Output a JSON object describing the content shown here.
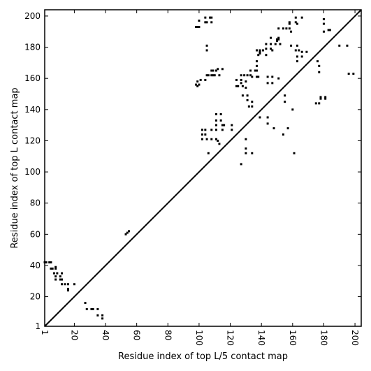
{
  "chart_data": {
    "type": "scatter",
    "title": "",
    "xlabel": "Residue index of top L/5 contact map",
    "ylabel": "Residue index of top L contact map",
    "xlim": [
      1,
      204
    ],
    "ylim": [
      1,
      204
    ],
    "xticks": [
      "1",
      "20",
      "40",
      "60",
      "80",
      "100",
      "120",
      "140",
      "160",
      "180",
      "200"
    ],
    "yticks": [
      "1",
      "20",
      "40",
      "60",
      "80",
      "100",
      "120",
      "140",
      "160",
      "180",
      "200"
    ],
    "diagonal": true,
    "grid": false,
    "marker_color": "#000000",
    "series": [
      {
        "points": [
          [
            1,
            42
          ],
          [
            2,
            42
          ],
          [
            4,
            42
          ],
          [
            5,
            42
          ],
          [
            5,
            38
          ],
          [
            6,
            38
          ],
          [
            8,
            39
          ],
          [
            8,
            38
          ],
          [
            7,
            35
          ],
          [
            9,
            35
          ],
          [
            8,
            33
          ],
          [
            8,
            31
          ],
          [
            11,
            33
          ],
          [
            11,
            31
          ],
          [
            12,
            31
          ],
          [
            12,
            35
          ],
          [
            12,
            28
          ],
          [
            14,
            28
          ],
          [
            16,
            28
          ],
          [
            16,
            25
          ],
          [
            16,
            24
          ],
          [
            20,
            28
          ],
          [
            27,
            16
          ],
          [
            28,
            12
          ],
          [
            31,
            12
          ],
          [
            32,
            12
          ],
          [
            35,
            12
          ],
          [
            35,
            8
          ],
          [
            38,
            8
          ],
          [
            38,
            6
          ],
          [
            53,
            60
          ],
          [
            54,
            61
          ],
          [
            55,
            62
          ],
          [
            98,
            193
          ],
          [
            99,
            193
          ],
          [
            100,
            193
          ],
          [
            100,
            197
          ],
          [
            104,
            199
          ],
          [
            104,
            196
          ],
          [
            105,
            196
          ],
          [
            107,
            199
          ],
          [
            108,
            199
          ],
          [
            108,
            196
          ],
          [
            105,
            181
          ],
          [
            105,
            178
          ],
          [
            99,
            158
          ],
          [
            98,
            156
          ],
          [
            99,
            155
          ],
          [
            100,
            156
          ],
          [
            101,
            159
          ],
          [
            104,
            159
          ],
          [
            105,
            162
          ],
          [
            106,
            162
          ],
          [
            108,
            165
          ],
          [
            108,
            162
          ],
          [
            109,
            165
          ],
          [
            109,
            162
          ],
          [
            110,
            162
          ],
          [
            111,
            165
          ],
          [
            112,
            166
          ],
          [
            113,
            162
          ],
          [
            115,
            166
          ],
          [
            102,
            127
          ],
          [
            102,
            124
          ],
          [
            102,
            121
          ],
          [
            104,
            127
          ],
          [
            104,
            124
          ],
          [
            105,
            121
          ],
          [
            106,
            112
          ],
          [
            108,
            127
          ],
          [
            108,
            121
          ],
          [
            111,
            137
          ],
          [
            111,
            133
          ],
          [
            111,
            130
          ],
          [
            111,
            127
          ],
          [
            111,
            121
          ],
          [
            112,
            120
          ],
          [
            113,
            118
          ],
          [
            114,
            137
          ],
          [
            114,
            133
          ],
          [
            115,
            130
          ],
          [
            116,
            130
          ],
          [
            115,
            127
          ],
          [
            121,
            130
          ],
          [
            121,
            127
          ],
          [
            124,
            159
          ],
          [
            124,
            155
          ],
          [
            125,
            155
          ],
          [
            127,
            162
          ],
          [
            127,
            159
          ],
          [
            127,
            157
          ],
          [
            128,
            155
          ],
          [
            128,
            149
          ],
          [
            127,
            105
          ],
          [
            129,
            162
          ],
          [
            130,
            158
          ],
          [
            130,
            154
          ],
          [
            130,
            121
          ],
          [
            130,
            115
          ],
          [
            130,
            112
          ],
          [
            131,
            162
          ],
          [
            131,
            149
          ],
          [
            131,
            146
          ],
          [
            132,
            142
          ],
          [
            133,
            162
          ],
          [
            133,
            165
          ],
          [
            134,
            161
          ],
          [
            134,
            145
          ],
          [
            134,
            142
          ],
          [
            134,
            112
          ],
          [
            136,
            165
          ],
          [
            137,
            168
          ],
          [
            137,
            165
          ],
          [
            137,
            161
          ],
          [
            137,
            171
          ],
          [
            137,
            178
          ],
          [
            138,
            175
          ],
          [
            138,
            161
          ],
          [
            139,
            176
          ],
          [
            139,
            177
          ],
          [
            139,
            178
          ],
          [
            139,
            135
          ],
          [
            141,
            178
          ],
          [
            143,
            175
          ],
          [
            143,
            179
          ],
          [
            143,
            182
          ],
          [
            144,
            157
          ],
          [
            144,
            161
          ],
          [
            144,
            135
          ],
          [
            144,
            131
          ],
          [
            146,
            179
          ],
          [
            146,
            182
          ],
          [
            146,
            186
          ],
          [
            147,
            178
          ],
          [
            147,
            161
          ],
          [
            147,
            157
          ],
          [
            148,
            128
          ],
          [
            149,
            182
          ],
          [
            150,
            185
          ],
          [
            150,
            184
          ],
          [
            151,
            186
          ],
          [
            151,
            185
          ],
          [
            151,
            192
          ],
          [
            151,
            160
          ],
          [
            152,
            182
          ],
          [
            154,
            192
          ],
          [
            154,
            124
          ],
          [
            155,
            149
          ],
          [
            155,
            145
          ],
          [
            156,
            192
          ],
          [
            157,
            128
          ],
          [
            158,
            196
          ],
          [
            158,
            195
          ],
          [
            158,
            192
          ],
          [
            159,
            190
          ],
          [
            159,
            181
          ],
          [
            160,
            140
          ],
          [
            161,
            112
          ],
          [
            162,
            199
          ],
          [
            162,
            196
          ],
          [
            163,
            195
          ],
          [
            163,
            181
          ],
          [
            162,
            178
          ],
          [
            163,
            174
          ],
          [
            163,
            171
          ],
          [
            164,
            178
          ],
          [
            166,
            199
          ],
          [
            166,
            177
          ],
          [
            166,
            174
          ],
          [
            169,
            177
          ],
          [
            176,
            171
          ],
          [
            177,
            168
          ],
          [
            177,
            164
          ],
          [
            175,
            144
          ],
          [
            177,
            144
          ],
          [
            178,
            148
          ],
          [
            178,
            147
          ],
          [
            180,
            198
          ],
          [
            180,
            195
          ],
          [
            180,
            190
          ],
          [
            181,
            148
          ],
          [
            181,
            147
          ],
          [
            183,
            191
          ],
          [
            184,
            191
          ],
          [
            190,
            181
          ],
          [
            195,
            181
          ],
          [
            196,
            163
          ],
          [
            199,
            163
          ]
        ]
      }
    ]
  }
}
